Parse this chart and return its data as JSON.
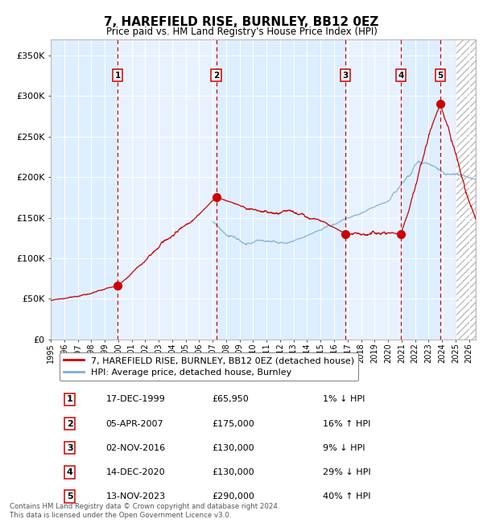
{
  "title": "7, HAREFIELD RISE, BURNLEY, BB12 0EZ",
  "subtitle": "Price paid vs. HM Land Registry's House Price Index (HPI)",
  "xlim_start": 1995.0,
  "xlim_end": 2026.5,
  "ylim": [
    0,
    370000
  ],
  "yticks": [
    0,
    50000,
    100000,
    150000,
    200000,
    250000,
    300000,
    350000
  ],
  "ytick_labels": [
    "£0",
    "£50K",
    "£100K",
    "£150K",
    "£200K",
    "£250K",
    "£300K",
    "£350K"
  ],
  "sale_dates_num": [
    1999.96,
    2007.26,
    2016.84,
    2020.95,
    2023.87
  ],
  "sale_prices": [
    65950,
    175000,
    130000,
    130000,
    290000
  ],
  "sale_labels": [
    "1",
    "2",
    "3",
    "4",
    "5"
  ],
  "sale_date_strs": [
    "17-DEC-1999",
    "05-APR-2007",
    "02-NOV-2016",
    "14-DEC-2020",
    "13-NOV-2023"
  ],
  "sale_price_strs": [
    "£65,950",
    "£175,000",
    "£130,000",
    "£130,000",
    "£290,000"
  ],
  "sale_hpi_strs": [
    "1% ↓ HPI",
    "16% ↑ HPI",
    "9% ↓ HPI",
    "29% ↓ HPI",
    "40% ↑ HPI"
  ],
  "line_color_red": "#cc0000",
  "line_color_blue": "#7aafd4",
  "dot_color": "#cc0000",
  "dashed_color": "#cc0000",
  "bg_color_light": "#ddeeff",
  "hatch_start": 2025.0,
  "footer_text": "Contains HM Land Registry data © Crown copyright and database right 2024.\nThis data is licensed under the Open Government Licence v3.0.",
  "legend_label_red": "7, HAREFIELD RISE, BURNLEY, BB12 0EZ (detached house)",
  "legend_label_blue": "HPI: Average price, detached house, Burnley",
  "xtick_years": [
    1995,
    1996,
    1997,
    1998,
    1999,
    2000,
    2001,
    2002,
    2003,
    2004,
    2005,
    2006,
    2007,
    2008,
    2009,
    2010,
    2011,
    2012,
    2013,
    2014,
    2015,
    2016,
    2017,
    2018,
    2019,
    2020,
    2021,
    2022,
    2023,
    2024,
    2025,
    2026
  ]
}
